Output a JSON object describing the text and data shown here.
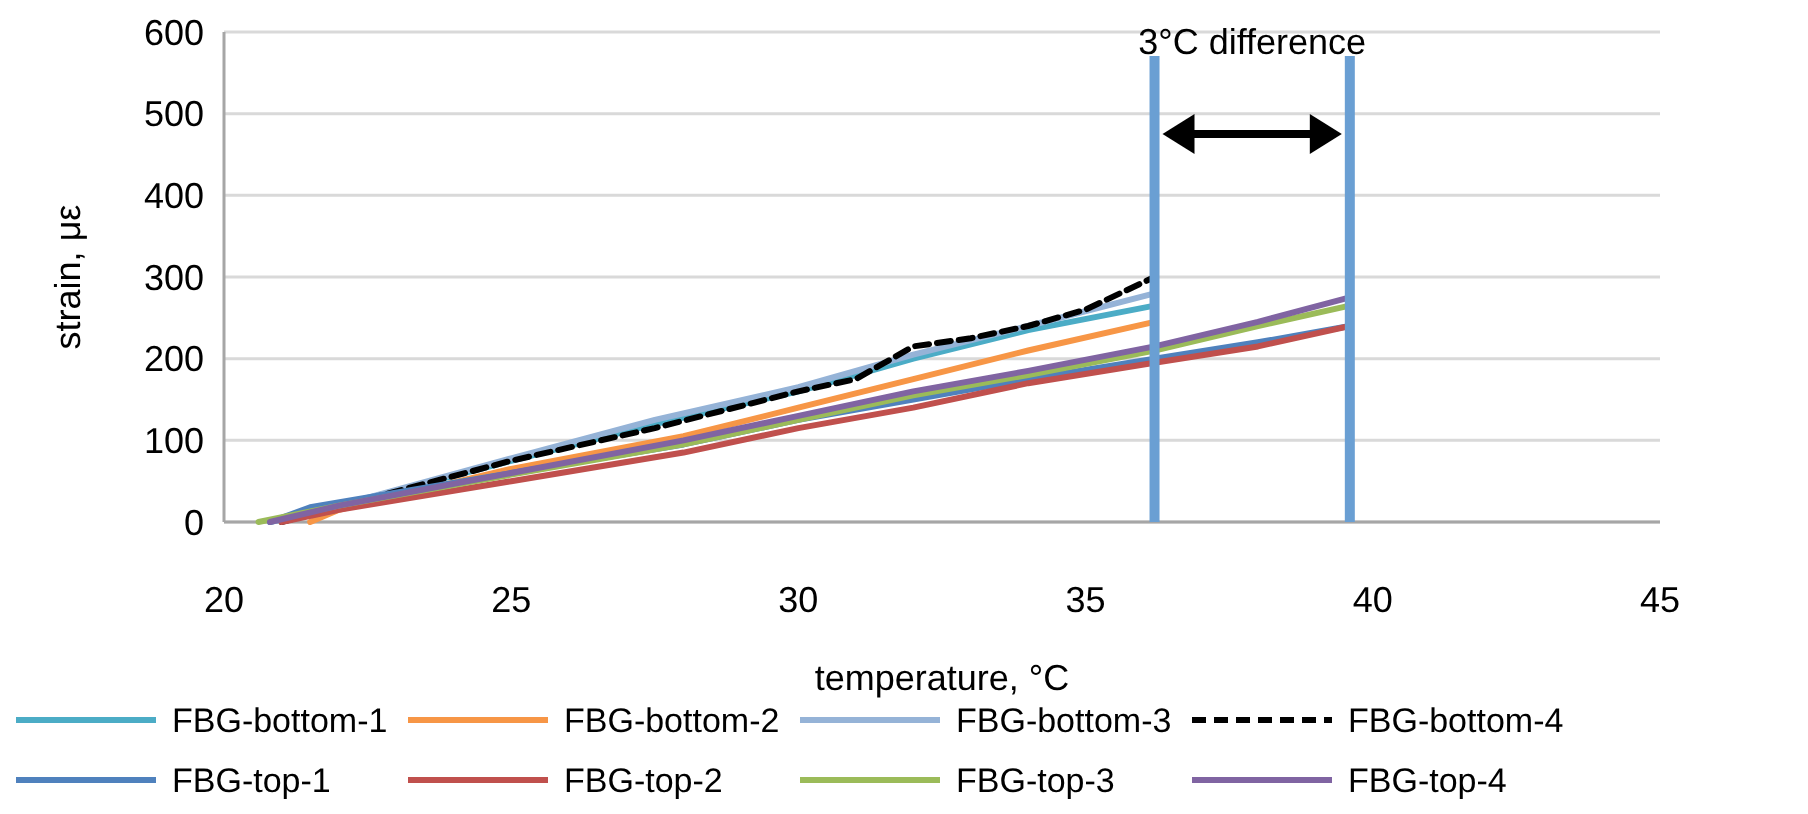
{
  "chart_data": {
    "type": "line",
    "xlabel": "temperature, °C",
    "ylabel": "strain, με",
    "xlim": [
      20,
      45
    ],
    "xticks": [
      20,
      25,
      30,
      35,
      40,
      45
    ],
    "ylim": [
      0,
      600
    ],
    "yticks": [
      0,
      100,
      200,
      300,
      400,
      500,
      600
    ],
    "grid": "y",
    "legend": "bottom",
    "line_style": "solid",
    "annotations": [
      "3°C difference"
    ],
    "ref_lines": [
      {
        "axis": "x",
        "value": 36.2,
        "color": "#6a9fd3"
      },
      {
        "axis": "x",
        "value": 39.6,
        "color": "#6a9fd3"
      }
    ],
    "series": [
      {
        "name": "FBG-bottom-1",
        "color": "#4bacc6",
        "x": [
          20.8,
          22,
          25,
          27.5,
          30,
          32,
          34,
          36.2
        ],
        "values": [
          0,
          20,
          75,
          120,
          160,
          200,
          235,
          265
        ]
      },
      {
        "name": "FBG-bottom-2",
        "color": "#f79646",
        "x": [
          21.5,
          22,
          25,
          28,
          30,
          32,
          34,
          36.2
        ],
        "values": [
          0,
          15,
          65,
          105,
          140,
          175,
          210,
          245
        ]
      },
      {
        "name": "FBG-bottom-3",
        "color": "#95b3d7",
        "x": [
          20.8,
          22,
          25,
          27.5,
          30,
          32,
          34,
          36.2
        ],
        "values": [
          0,
          20,
          78,
          125,
          165,
          205,
          240,
          280
        ]
      },
      {
        "name": "FBG-bottom-4",
        "color": "#000000",
        "line_style": "dashed",
        "x": [
          21,
          25,
          27.5,
          30,
          31,
          32,
          33,
          34,
          35,
          36.2
        ],
        "values": [
          0,
          75,
          115,
          160,
          175,
          215,
          225,
          240,
          260,
          300
        ]
      },
      {
        "name": "FBG-top-1",
        "color": "#4f81bd",
        "x": [
          20.8,
          21.5,
          25,
          28,
          30,
          32,
          34,
          36.2,
          38,
          39.6
        ],
        "values": [
          0,
          18,
          60,
          95,
          125,
          150,
          175,
          200,
          220,
          240
        ]
      },
      {
        "name": "FBG-top-2",
        "color": "#c0504d",
        "x": [
          21,
          22,
          25,
          28,
          30,
          32,
          34,
          36.2,
          38,
          39.6
        ],
        "values": [
          0,
          15,
          50,
          85,
          115,
          140,
          170,
          195,
          215,
          240
        ]
      },
      {
        "name": "FBG-top-3",
        "color": "#9bbb59",
        "x": [
          20.6,
          22,
          25,
          28,
          30,
          32,
          34,
          36.2,
          38,
          39.6
        ],
        "values": [
          0,
          20,
          58,
          95,
          125,
          155,
          180,
          210,
          240,
          265
        ]
      },
      {
        "name": "FBG-top-4",
        "color": "#8064a2",
        "x": [
          20.8,
          22,
          25,
          28,
          30,
          32,
          34,
          36.2,
          38,
          39.6
        ],
        "values": [
          0,
          20,
          60,
          100,
          130,
          160,
          185,
          215,
          245,
          275
        ]
      }
    ]
  }
}
